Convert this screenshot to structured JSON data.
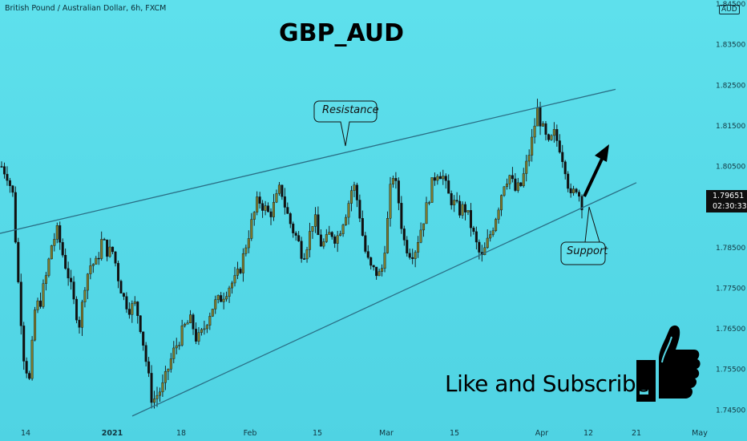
{
  "header": {
    "symbol_line": "British Pound / Australian Dollar, 6h, FXCM",
    "currency": "AUD"
  },
  "title": "GBP_AUD",
  "annotations": {
    "resistance": "Resistance",
    "support": "Support",
    "cta": "Like and Subscribe"
  },
  "price_tag": {
    "price": "1.79651",
    "countdown": "02:30:33"
  },
  "colors": {
    "background": "#54d8e6",
    "candle_up": "#7c7a2e",
    "candle_down": "#111111",
    "trendline": "#2a6f86",
    "axis_text": "#123640"
  },
  "chart_data": {
    "type": "candlestick",
    "title": "GBP_AUD",
    "x_ticks": [
      "14",
      "2021",
      "18",
      "Feb",
      "15",
      "Mar",
      "15",
      "Apr",
      "12",
      "21",
      "May"
    ],
    "y_ticks": [
      1.745,
      1.755,
      1.765,
      1.775,
      1.785,
      1.795,
      1.805,
      1.815,
      1.825,
      1.835,
      1.845
    ],
    "ylim": [
      1.7417,
      1.846
    ],
    "last_price": 1.79651,
    "trendlines": [
      {
        "name": "Resistance",
        "from": {
          "x": "start",
          "y": 1.7885
        },
        "to": {
          "x": "2021-04-19",
          "y": 1.824
        }
      },
      {
        "name": "Support",
        "from": {
          "x": "2021-01-04",
          "y": 1.7435
        },
        "to": {
          "x": "2021-04-24",
          "y": 1.801
        }
      }
    ],
    "close_path": [
      1.805,
      1.803,
      1.798,
      1.776,
      1.758,
      1.752,
      1.77,
      1.772,
      1.778,
      1.786,
      1.789,
      1.783,
      1.778,
      1.771,
      1.766,
      1.777,
      1.781,
      1.781,
      1.787,
      1.784,
      1.784,
      1.777,
      1.772,
      1.77,
      1.771,
      1.765,
      1.756,
      1.747,
      1.749,
      1.751,
      1.756,
      1.76,
      1.763,
      1.766,
      1.767,
      1.762,
      1.764,
      1.768,
      1.771,
      1.772,
      1.774,
      1.776,
      1.777,
      1.781,
      1.787,
      1.792,
      1.797,
      1.795,
      1.793,
      1.796,
      1.8,
      1.794,
      1.79,
      1.787,
      1.783,
      1.787,
      1.793,
      1.786,
      1.786,
      1.789,
      1.787,
      1.791,
      1.795,
      1.801,
      1.795,
      1.785,
      1.78,
      1.779,
      1.778,
      1.789,
      1.804,
      1.798,
      1.787,
      1.784,
      1.784,
      1.789,
      1.794,
      1.8,
      1.804,
      1.803,
      1.798,
      1.796,
      1.794,
      1.795,
      1.791,
      1.786,
      1.782,
      1.786,
      1.79,
      1.795,
      1.801,
      1.803,
      1.799,
      1.8,
      1.805,
      1.811,
      1.819,
      1.814,
      1.81,
      1.813,
      1.81,
      1.805,
      1.797,
      1.8,
      1.796
    ]
  }
}
